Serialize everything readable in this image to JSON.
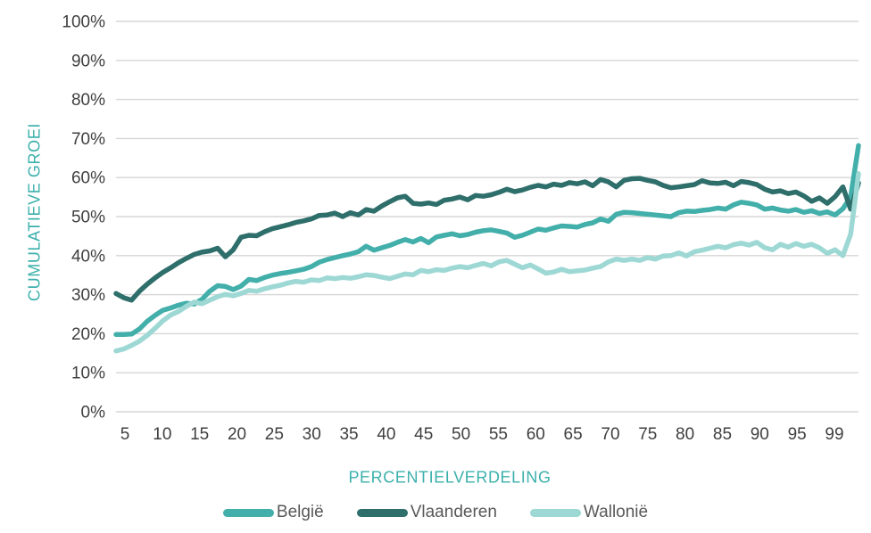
{
  "chart_data": {
    "type": "line",
    "title": "",
    "xlabel": "PERCENTIELVERDELING",
    "ylabel": "CUMULATIEVE GROEI",
    "x_domain": [
      4,
      99
    ],
    "ylim": [
      0,
      100
    ],
    "grid": "horizontal-only",
    "legend_position": "bottom-center",
    "x_ticks": [
      "5",
      "10",
      "15",
      "20",
      "25",
      "30",
      "35",
      "40",
      "45",
      "50",
      "55",
      "60",
      "65",
      "70",
      "75",
      "80",
      "85",
      "90",
      "95",
      "99"
    ],
    "y_ticks": [
      "0%",
      "10%",
      "20%",
      "30%",
      "40%",
      "50%",
      "60%",
      "70%",
      "80%",
      "90%",
      "100%"
    ],
    "y_tick_values": [
      0,
      10,
      20,
      30,
      40,
      50,
      60,
      70,
      80,
      90,
      100
    ],
    "series": [
      {
        "name": "België",
        "color": "#43AFAA",
        "x_start": 4,
        "x_step": 1,
        "values": [
          19.8,
          19.8,
          19.9,
          21.2,
          23.2,
          24.7,
          26.0,
          26.6,
          27.3,
          27.8,
          27.6,
          28.8,
          30.9,
          32.3,
          32.1,
          31.3,
          32.2,
          33.9,
          33.6,
          34.4,
          35.0,
          35.4,
          35.7,
          36.1,
          36.5,
          37.2,
          38.3,
          39.0,
          39.5,
          40.0,
          40.4,
          41.0,
          42.4,
          41.4,
          42.0,
          42.6,
          43.4,
          44.1,
          43.5,
          44.4,
          43.3,
          44.8,
          45.2,
          45.6,
          45.1,
          45.4,
          46.0,
          46.4,
          46.6,
          46.2,
          45.8,
          44.7,
          45.2,
          46.0,
          46.8,
          46.5,
          47.1,
          47.6,
          47.5,
          47.3,
          48.0,
          48.4,
          49.4,
          48.8,
          50.6,
          51.1,
          51.0,
          50.8,
          50.6,
          50.4,
          50.2,
          50.0,
          51.0,
          51.4,
          51.3,
          51.6,
          51.8,
          52.2,
          51.9,
          53.0,
          53.7,
          53.4,
          53.0,
          51.9,
          52.2,
          51.7,
          51.4,
          51.8,
          51.1,
          51.5,
          50.8,
          51.2,
          50.4,
          52.0,
          55.0,
          68.2
        ]
      },
      {
        "name": "Vlaanderen",
        "color": "#2E6E6B",
        "x_start": 4,
        "x_step": 1,
        "values": [
          30.3,
          29.2,
          28.6,
          30.9,
          32.7,
          34.3,
          35.7,
          36.9,
          38.2,
          39.3,
          40.3,
          40.9,
          41.2,
          41.9,
          39.7,
          41.5,
          44.7,
          45.2,
          45.1,
          46.1,
          46.9,
          47.4,
          47.9,
          48.5,
          48.9,
          49.4,
          50.3,
          50.4,
          50.9,
          50.0,
          51.0,
          50.4,
          51.8,
          51.4,
          52.7,
          53.8,
          54.8,
          55.2,
          53.4,
          53.2,
          53.5,
          53.1,
          54.2,
          54.5,
          55.0,
          54.3,
          55.4,
          55.2,
          55.6,
          56.2,
          57.0,
          56.4,
          56.8,
          57.5,
          58.0,
          57.6,
          58.3,
          58.0,
          58.7,
          58.4,
          58.9,
          57.9,
          59.5,
          58.9,
          57.6,
          59.3,
          59.7,
          59.8,
          59.3,
          58.9,
          58.0,
          57.4,
          57.6,
          57.9,
          58.2,
          59.2,
          58.6,
          58.5,
          58.8,
          57.9,
          59.0,
          58.7,
          58.2,
          57.0,
          56.3,
          56.6,
          55.9,
          56.3,
          55.3,
          53.9,
          54.8,
          53.4,
          55.1,
          57.6,
          51.9,
          58.6
        ]
      },
      {
        "name": "Wallonië",
        "color": "#9DD8D4",
        "x_start": 4,
        "x_step": 1,
        "values": [
          15.6,
          16.1,
          17.0,
          18.1,
          19.6,
          21.4,
          23.3,
          24.8,
          25.7,
          27.0,
          28.1,
          27.7,
          28.6,
          29.5,
          30.1,
          29.7,
          30.3,
          31.1,
          30.9,
          31.5,
          32.0,
          32.4,
          33.0,
          33.4,
          33.2,
          33.8,
          33.6,
          34.3,
          34.1,
          34.4,
          34.2,
          34.6,
          35.1,
          34.9,
          34.5,
          34.1,
          34.7,
          35.3,
          35.1,
          36.2,
          35.9,
          36.4,
          36.2,
          36.8,
          37.2,
          36.9,
          37.5,
          38.0,
          37.4,
          38.4,
          38.8,
          37.8,
          36.9,
          37.6,
          36.6,
          35.5,
          35.8,
          36.5,
          35.9,
          36.1,
          36.3,
          36.8,
          37.2,
          38.4,
          39.1,
          38.8,
          39.1,
          38.8,
          39.5,
          39.1,
          39.9,
          40.0,
          40.7,
          39.9,
          41.0,
          41.4,
          41.9,
          42.4,
          42.0,
          42.8,
          43.2,
          42.7,
          43.4,
          42.0,
          41.5,
          42.9,
          42.2,
          43.1,
          42.4,
          42.9,
          42.0,
          40.6,
          41.5,
          40.0,
          45.5,
          61.0
        ]
      }
    ]
  },
  "colors": {
    "background": "#FFFFFF",
    "gridline": "#D6D6D6",
    "tick_text": "#3F3F3F",
    "axis_title": "#3BB0AB",
    "legend_text": "#595959"
  }
}
